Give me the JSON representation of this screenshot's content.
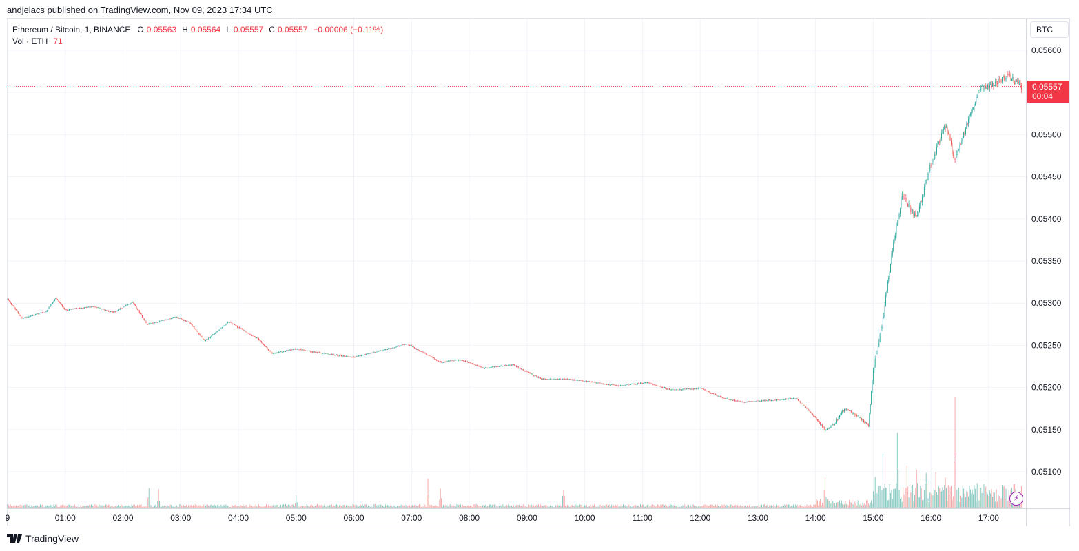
{
  "header": {
    "published": "andjelacs published on TradingView.com, Nov 09, 2023 17:34 UTC"
  },
  "legend": {
    "symbol": "Ethereum / Bitcoin, 1, BINANCE",
    "o_label": "O",
    "o_value": "0.05563",
    "h_label": "H",
    "h_value": "0.05564",
    "l_label": "L",
    "l_value": "0.05557",
    "c_label": "C",
    "c_value": "0.05557",
    "change": "−0.00006 (−0.11%)",
    "vol_label": "Vol · ETH",
    "vol_value": "71"
  },
  "currency_button": "BTC",
  "last_price": {
    "price": "0.05557",
    "countdown": "00:04"
  },
  "footer": {
    "brand": "TradingView"
  },
  "icons": {
    "lightning": "lightning-icon",
    "logo": "tradingview-logo-icon"
  },
  "colors": {
    "up": "#26a69a",
    "down": "#ef5350",
    "up_volume": "#7fc4bc",
    "down_volume": "#f4a2a1",
    "price_line": "#f23645",
    "grid": "#f0f3fa"
  },
  "chart_data": {
    "type": "candlestick",
    "title": "Ethereum / Bitcoin, 1, BINANCE",
    "y_ticks": [
      "0.05600",
      "0.05550",
      "0.05500",
      "0.05450",
      "0.05400",
      "0.05350",
      "0.05300",
      "0.05250",
      "0.05200",
      "0.05150",
      "0.05100"
    ],
    "y_range": [
      0.05066,
      0.05609
    ],
    "x_ticks": [
      "9",
      "01:00",
      "02:00",
      "03:00",
      "04:00",
      "05:00",
      "06:00",
      "07:00",
      "08:00",
      "09:00",
      "10:00",
      "11:00",
      "12:00",
      "13:00",
      "14:00",
      "15:00",
      "16:00",
      "17:00"
    ],
    "x_tick_minutes": [
      0,
      60,
      120,
      180,
      240,
      300,
      360,
      420,
      480,
      540,
      600,
      660,
      720,
      780,
      840,
      900,
      960,
      1020
    ],
    "x_range_minutes": [
      0,
      1054
    ],
    "last_price": 0.05557,
    "grid": true,
    "price_path": [
      [
        0,
        0.05305
      ],
      [
        15,
        0.05282
      ],
      [
        40,
        0.0529
      ],
      [
        50,
        0.05306
      ],
      [
        60,
        0.05292
      ],
      [
        90,
        0.05296
      ],
      [
        110,
        0.05289
      ],
      [
        130,
        0.05301
      ],
      [
        145,
        0.05275
      ],
      [
        160,
        0.05279
      ],
      [
        175,
        0.05284
      ],
      [
        190,
        0.05276
      ],
      [
        205,
        0.05255
      ],
      [
        230,
        0.05278
      ],
      [
        260,
        0.05258
      ],
      [
        275,
        0.0524
      ],
      [
        300,
        0.05246
      ],
      [
        330,
        0.0524
      ],
      [
        360,
        0.05236
      ],
      [
        390,
        0.05244
      ],
      [
        415,
        0.05252
      ],
      [
        450,
        0.0523
      ],
      [
        470,
        0.05233
      ],
      [
        495,
        0.05223
      ],
      [
        525,
        0.05227
      ],
      [
        555,
        0.0521
      ],
      [
        580,
        0.0521
      ],
      [
        610,
        0.05206
      ],
      [
        635,
        0.05202
      ],
      [
        665,
        0.05206
      ],
      [
        690,
        0.05197
      ],
      [
        720,
        0.05199
      ],
      [
        745,
        0.05187
      ],
      [
        765,
        0.05183
      ],
      [
        795,
        0.05185
      ],
      [
        820,
        0.05187
      ],
      [
        835,
        0.0517
      ],
      [
        850,
        0.0515
      ],
      [
        860,
        0.05158
      ],
      [
        870,
        0.05175
      ],
      [
        885,
        0.05165
      ],
      [
        895,
        0.05155
      ],
      [
        900,
        0.0522
      ],
      [
        910,
        0.0528
      ],
      [
        920,
        0.05365
      ],
      [
        930,
        0.05428
      ],
      [
        945,
        0.054
      ],
      [
        960,
        0.05465
      ],
      [
        975,
        0.0551
      ],
      [
        985,
        0.0547
      ],
      [
        995,
        0.05502
      ],
      [
        1000,
        0.0552
      ],
      [
        1010,
        0.05555
      ],
      [
        1025,
        0.0556
      ],
      [
        1040,
        0.0557
      ],
      [
        1054,
        0.05557
      ]
    ],
    "volume_bursts": [
      [
        147,
        35
      ],
      [
        157,
        30
      ],
      [
        300,
        18
      ],
      [
        437,
        48
      ],
      [
        450,
        30
      ],
      [
        578,
        36
      ],
      [
        850,
        50
      ],
      [
        902,
        45
      ],
      [
        910,
        80
      ],
      [
        925,
        115
      ],
      [
        935,
        85
      ],
      [
        945,
        60
      ],
      [
        955,
        75
      ],
      [
        965,
        60
      ],
      [
        975,
        48
      ],
      [
        985,
        180
      ],
      [
        1000,
        40
      ],
      [
        1017,
        45
      ],
      [
        1035,
        35
      ],
      [
        1045,
        25
      ],
      [
        1054,
        10
      ]
    ]
  }
}
